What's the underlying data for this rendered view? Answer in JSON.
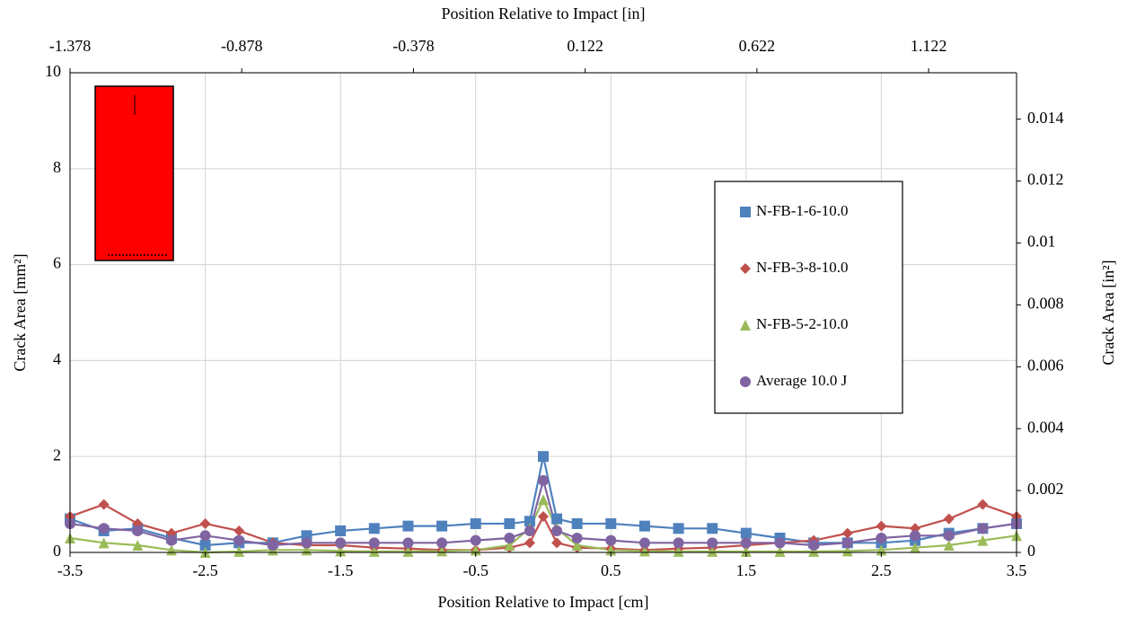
{
  "chart_data": {
    "type": "line",
    "x_label": "Position Relative to Impact [cm]",
    "x2_label": "Position Relative to Impact [in]",
    "y_label": "Crack Area [mm²]",
    "y2_label": "Crack Area [in²]",
    "x": [
      -3.5,
      -3.25,
      -3.0,
      -2.75,
      -2.5,
      -2.25,
      -2.0,
      -1.75,
      -1.5,
      -1.25,
      -1.0,
      -0.75,
      -0.5,
      -0.25,
      -0.1,
      0,
      0.1,
      0.25,
      0.5,
      0.75,
      1.0,
      1.25,
      1.5,
      1.75,
      2.0,
      2.25,
      2.5,
      2.75,
      3.0,
      3.25,
      3.5
    ],
    "series": [
      {
        "name": "N-FB-1-6-10.0",
        "color": "#4f81bd",
        "marker": "square",
        "values": [
          0.7,
          0.45,
          0.5,
          0.3,
          0.15,
          0.2,
          0.2,
          0.35,
          0.45,
          0.5,
          0.55,
          0.55,
          0.6,
          0.6,
          0.65,
          2.0,
          0.7,
          0.6,
          0.6,
          0.55,
          0.5,
          0.5,
          0.4,
          0.3,
          0.2,
          0.2,
          0.2,
          0.25,
          0.4,
          0.5,
          0.6
        ]
      },
      {
        "name": "N-FB-3-8-10.0",
        "color": "#c0504d",
        "marker": "diamond",
        "values": [
          0.75,
          1.0,
          0.6,
          0.4,
          0.6,
          0.45,
          0.2,
          0.15,
          0.15,
          0.1,
          0.08,
          0.05,
          0.05,
          0.1,
          0.2,
          0.75,
          0.2,
          0.1,
          0.08,
          0.05,
          0.08,
          0.1,
          0.15,
          0.2,
          0.25,
          0.4,
          0.55,
          0.5,
          0.7,
          1.0,
          0.75
        ]
      },
      {
        "name": "N-FB-5-2-10.0",
        "color": "#9bbb59",
        "marker": "triangle",
        "values": [
          0.3,
          0.2,
          0.15,
          0.05,
          0.0,
          0.02,
          0.05,
          0.05,
          0.03,
          0.02,
          0.02,
          0.03,
          0.05,
          0.15,
          0.5,
          1.1,
          0.5,
          0.15,
          0.05,
          0.03,
          0.02,
          0.02,
          0.02,
          0.02,
          0.02,
          0.03,
          0.05,
          0.1,
          0.15,
          0.25,
          0.35
        ]
      },
      {
        "name": "Average 10.0 J",
        "color": "#8064a2",
        "marker": "circle",
        "values": [
          0.6,
          0.5,
          0.45,
          0.25,
          0.35,
          0.25,
          0.15,
          0.2,
          0.2,
          0.2,
          0.2,
          0.2,
          0.25,
          0.3,
          0.45,
          1.5,
          0.45,
          0.3,
          0.25,
          0.2,
          0.2,
          0.2,
          0.2,
          0.2,
          0.15,
          0.2,
          0.3,
          0.35,
          0.35,
          0.5,
          0.6
        ]
      }
    ],
    "xlim": [
      -3.5,
      3.5
    ],
    "xticks": [
      -3.5,
      -2.5,
      -1.5,
      -0.5,
      0.5,
      1.5,
      2.5,
      3.5
    ],
    "x2lim": [
      -1.378,
      1.378
    ],
    "x2ticks": [
      -1.378,
      -0.878,
      -0.378,
      0.122,
      0.622,
      1.122
    ],
    "ylim": [
      0,
      10
    ],
    "yticks": [
      0,
      2,
      4,
      6,
      8,
      10
    ],
    "y2lim": [
      0,
      0.0155
    ],
    "y2ticks": [
      0,
      0.002,
      0.004,
      0.006,
      0.008,
      0.01,
      0.012,
      0.014
    ],
    "grid": true,
    "legend": "right"
  }
}
